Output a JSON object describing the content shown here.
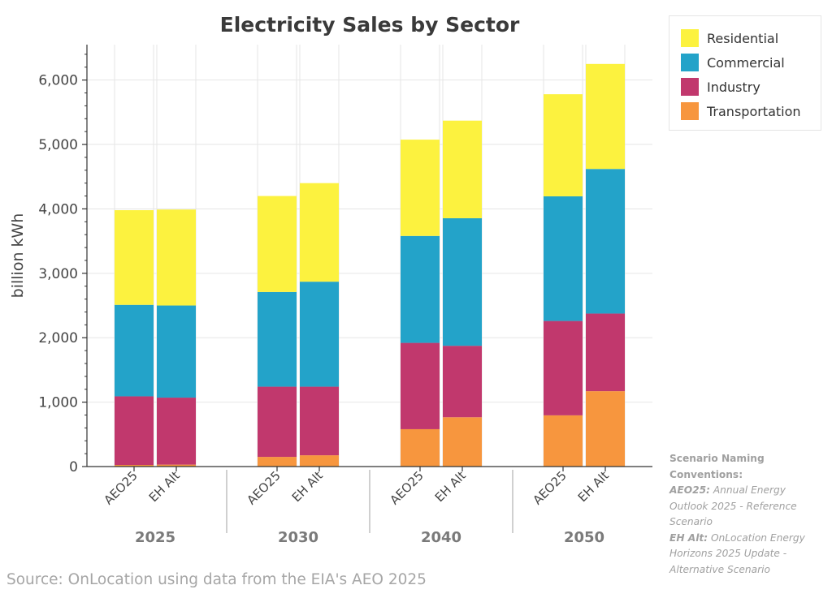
{
  "chart_data": {
    "type": "bar",
    "stacked": true,
    "title": "Electricity Sales by Sector",
    "ylabel": "billion kWh",
    "xlabel": "",
    "ylim": [
      0,
      6550
    ],
    "yticks": [
      0,
      1000,
      2000,
      3000,
      4000,
      5000,
      6000
    ],
    "ytick_labels": [
      "0",
      "1,000",
      "2,000",
      "3,000",
      "4,000",
      "5,000",
      "6,000"
    ],
    "grid": true,
    "legend_position": "top-right",
    "groups": [
      "2025",
      "2030",
      "2040",
      "2050"
    ],
    "scenarios": [
      "AEO25",
      "EH Alt"
    ],
    "categories": [
      "AEO25",
      "EH Alt",
      "AEO25",
      "EH Alt",
      "AEO25",
      "EH Alt",
      "AEO25",
      "EH Alt"
    ],
    "category_groups": [
      "2025",
      "2025",
      "2030",
      "2030",
      "2040",
      "2040",
      "2050",
      "2050"
    ],
    "series": [
      {
        "name": "Transportation",
        "color": "#f7963e",
        "values": [
          25,
          30,
          150,
          175,
          580,
          765,
          795,
          1170
        ]
      },
      {
        "name": "Industry",
        "color": "#c1386d",
        "values": [
          1065,
          1040,
          1090,
          1065,
          1340,
          1110,
          1465,
          1205
        ]
      },
      {
        "name": "Commercial",
        "color": "#23a3c9",
        "values": [
          1420,
          1430,
          1470,
          1630,
          1660,
          1980,
          1935,
          2245
        ]
      },
      {
        "name": "Residential",
        "color": "#fcf23f",
        "values": [
          1470,
          1490,
          1490,
          1530,
          1495,
          1515,
          1585,
          1630
        ]
      }
    ],
    "legend_order": [
      "Residential",
      "Commercial",
      "Industry",
      "Transportation"
    ]
  },
  "notes": {
    "naming_header": "Scenario Naming Conventions:",
    "aeo_abbr": "AEO25:",
    "aeo_desc": "Annual Energy Outlook 2025 - Reference Scenario",
    "eh_abbr": "EH Alt:",
    "eh_desc": "OnLocation Energy Horizons 2025 Update - Alternative Scenario",
    "source": "Source: OnLocation using data from the EIA's AEO 2025"
  }
}
